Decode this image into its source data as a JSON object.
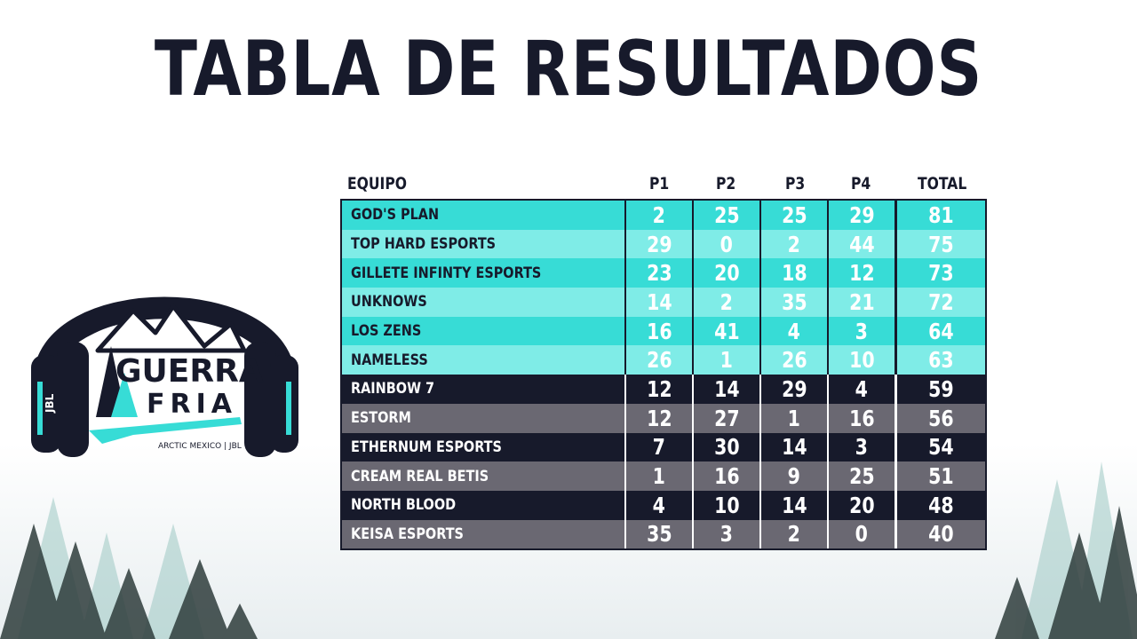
{
  "title": "TABLA DE RESULTADOS",
  "logo": {
    "line1": "GUERRA",
    "line2": "FRIA",
    "caption": "ARCTIC MEXICO | JBL",
    "brand": "JBL"
  },
  "table": {
    "headers": [
      "EQUIPO",
      "P1",
      "P2",
      "P3",
      "P4",
      "TOTAL"
    ],
    "rows": [
      {
        "team": "GOD'S PLAN",
        "p1": "2",
        "p2": "25",
        "p3": "25",
        "p4": "29",
        "total": "81"
      },
      {
        "team": "TOP HARD ESPORTS",
        "p1": "29",
        "p2": "0",
        "p3": "2",
        "p4": "44",
        "total": "75"
      },
      {
        "team": "GILLETE INFINTY ESPORTS",
        "p1": "23",
        "p2": "20",
        "p3": "18",
        "p4": "12",
        "total": "73"
      },
      {
        "team": "UNKNOWS",
        "p1": "14",
        "p2": "2",
        "p3": "35",
        "p4": "21",
        "total": "72"
      },
      {
        "team": "LOS ZENS",
        "p1": "16",
        "p2": "41",
        "p3": "4",
        "p4": "3",
        "total": "64"
      },
      {
        "team": "NAMELESS",
        "p1": "26",
        "p2": "1",
        "p3": "26",
        "p4": "10",
        "total": "63"
      },
      {
        "team": "RAINBOW 7",
        "p1": "12",
        "p2": "14",
        "p3": "29",
        "p4": "4",
        "total": "59"
      },
      {
        "team": "ESTORM",
        "p1": "12",
        "p2": "27",
        "p3": "1",
        "p4": "16",
        "total": "56"
      },
      {
        "team": "ETHERNUM ESPORTS",
        "p1": "7",
        "p2": "30",
        "p3": "14",
        "p4": "3",
        "total": "54"
      },
      {
        "team": "CREAM REAL BETIS",
        "p1": "1",
        "p2": "16",
        "p3": "9",
        "p4": "25",
        "total": "51"
      },
      {
        "team": "NORTH BLOOD",
        "p1": "4",
        "p2": "10",
        "p3": "14",
        "p4": "20",
        "total": "48"
      },
      {
        "team": "KEISA ESPORTS",
        "p1": "35",
        "p2": "3",
        "p3": "2",
        "p4": "0",
        "total": "40"
      }
    ]
  },
  "colors": {
    "teal": "#37dcd6",
    "teal_light": "#7fece7",
    "navy": "#171a2b",
    "gray": "#6a6872"
  }
}
